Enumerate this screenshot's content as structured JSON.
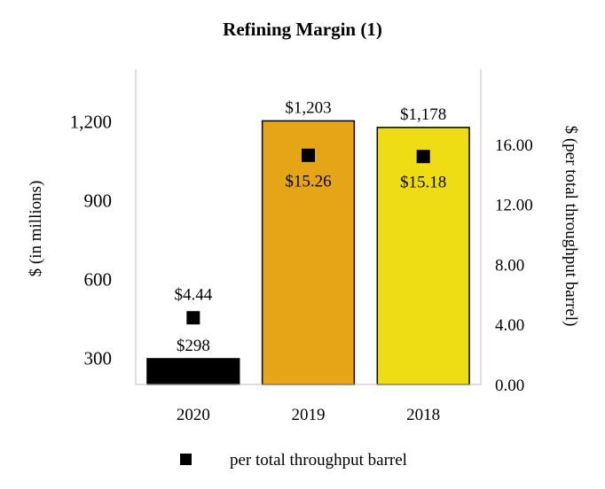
{
  "chart_data": {
    "type": "bar",
    "title": "Refining Margin (1)",
    "categories": [
      "2020",
      "2019",
      "2018"
    ],
    "bar_colors": [
      "#000000",
      "#E5A516",
      "#EEDD14"
    ],
    "marker_color": "#000000",
    "y_left": {
      "label": "$ (in millions)",
      "lim": [
        200,
        1400
      ],
      "ticks": [
        300,
        600,
        900,
        1200
      ],
      "tick_labels": [
        "300",
        "600",
        "900",
        "1,200"
      ]
    },
    "y_right": {
      "label": "$ (per total throughput barrel)",
      "lim": [
        0,
        21
      ],
      "ticks": [
        0,
        4,
        8,
        12,
        16
      ],
      "tick_labels": [
        "0.00",
        "4.00",
        "8.00",
        "12.00",
        "16.00"
      ]
    },
    "grid": false,
    "legend_position": "bottom",
    "series": [
      {
        "type": "bar",
        "axis": "left",
        "values": [
          298,
          1203,
          1178
        ],
        "labels": [
          "$298",
          "$1,203",
          "$1,178"
        ]
      },
      {
        "type": "scatter",
        "axis": "right",
        "name": "per total throughput barrel",
        "values": [
          4.44,
          15.26,
          15.18
        ],
        "labels": [
          "$4.44",
          "$15.26",
          "$15.18"
        ]
      }
    ]
  }
}
